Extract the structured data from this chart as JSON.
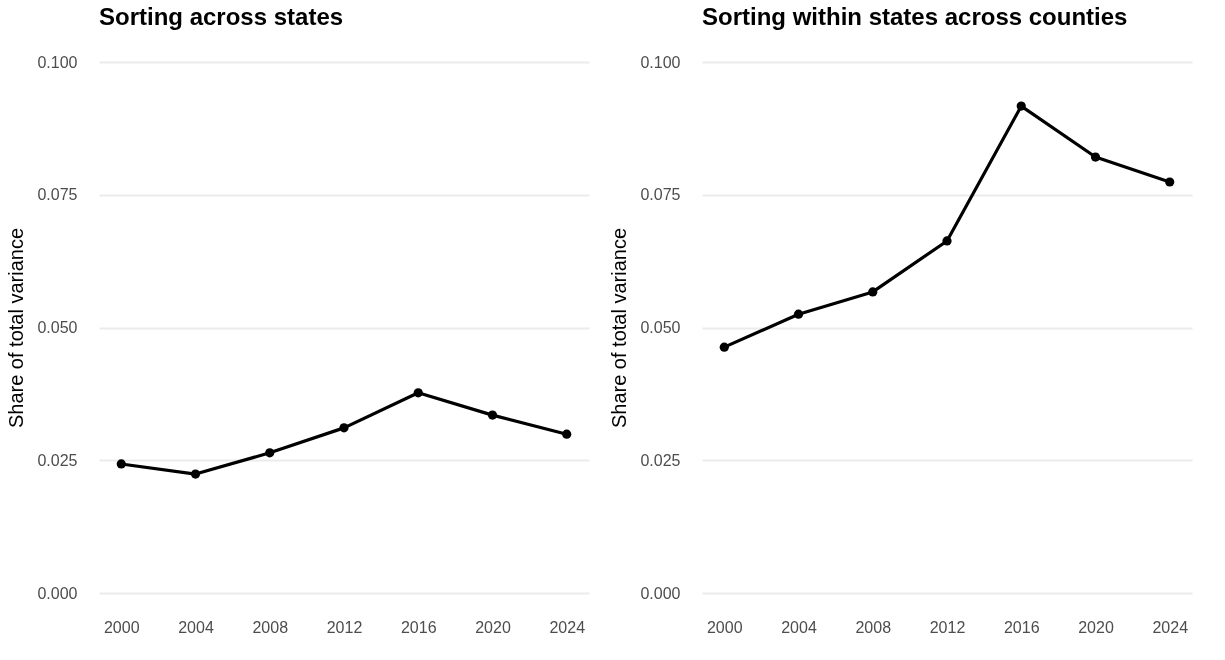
{
  "chart_data": [
    {
      "type": "line",
      "title": "Sorting across states",
      "ylabel": "Share of total variance",
      "x": [
        2000,
        2004,
        2008,
        2012,
        2016,
        2020,
        2024
      ],
      "series": [
        {
          "color": "#000000",
          "values": [
            0.0243,
            0.0224,
            0.0264,
            0.0311,
            0.0377,
            0.0335,
            0.0299
          ]
        }
      ],
      "xlim": [
        1998.8,
        2025.2
      ],
      "xticks": [
        2000,
        2004,
        2008,
        2012,
        2016,
        2020,
        2024
      ],
      "ylim": [
        0,
        0.1
      ],
      "yticks": [
        {
          "value": 0,
          "label": "0.000"
        },
        {
          "value": 0.025,
          "label": "0.025"
        },
        {
          "value": 0.05,
          "label": "0.050"
        },
        {
          "value": 0.075,
          "label": "0.075"
        },
        {
          "value": 0.1,
          "label": "0.100"
        }
      ],
      "grid": "y",
      "marker": "circle",
      "line_style": "solid"
    },
    {
      "type": "line",
      "title": "Sorting within states across counties",
      "ylabel": "Share of total variance",
      "x": [
        2000,
        2004,
        2008,
        2012,
        2016,
        2020,
        2024
      ],
      "series": [
        {
          "color": "#000000",
          "values": [
            0.0463,
            0.0525,
            0.0567,
            0.0663,
            0.0917,
            0.0821,
            0.0774
          ]
        }
      ],
      "xlim": [
        1998.8,
        2025.2
      ],
      "xticks": [
        2000,
        2004,
        2008,
        2012,
        2016,
        2020,
        2024
      ],
      "ylim": [
        0,
        0.1
      ],
      "yticks": [
        {
          "value": 0,
          "label": "0.000"
        },
        {
          "value": 0.025,
          "label": "0.025"
        },
        {
          "value": 0.05,
          "label": "0.050"
        },
        {
          "value": 0.075,
          "label": "0.075"
        },
        {
          "value": 0.1,
          "label": "0.100"
        }
      ],
      "grid": "y",
      "marker": "circle",
      "line_style": "solid"
    }
  ]
}
